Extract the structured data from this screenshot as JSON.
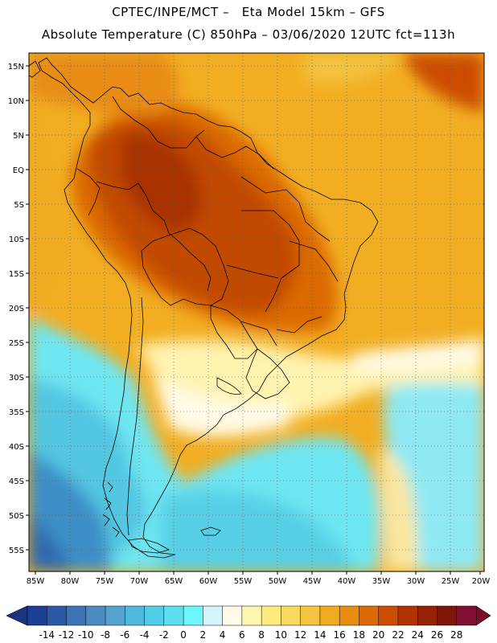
{
  "header": {
    "title_line1": "CPTEC/INPE/MCT –   Eta Model 15km – GFS",
    "title_line2": "Absolute Temperature (C) 850hPa – 03/06/2020 12UTC fct=113h"
  },
  "map": {
    "lon_labels": [
      "85W",
      "80W",
      "75W",
      "70W",
      "65W",
      "60W",
      "55W",
      "50W",
      "45W",
      "40W",
      "35W",
      "30W",
      "25W",
      "20W"
    ],
    "lat_labels": [
      "15N",
      "10N",
      "5N",
      "EQ",
      "5S",
      "10S",
      "15S",
      "20S",
      "25S",
      "30S",
      "35S",
      "40S",
      "45S",
      "50S",
      "55S"
    ]
  },
  "colorbar": {
    "labels": [
      "-14",
      "-12",
      "-10",
      "-8",
      "-6",
      "-4",
      "-2",
      "0",
      "2",
      "4",
      "6",
      "8",
      "10",
      "12",
      "14",
      "16",
      "18",
      "20",
      "22",
      "24",
      "26",
      "28"
    ],
    "colors": [
      "#1a3f93",
      "#2b5aa5",
      "#3c75b6",
      "#4a8bc2",
      "#56a2cf",
      "#4fb8dc",
      "#52cde6",
      "#5ddff0",
      "#6cf5fa",
      "#d2f5fb",
      "#fffbe6",
      "#fff6b0",
      "#fdeb80",
      "#f8d85e",
      "#f4c340",
      "#f0aa20",
      "#e88c12",
      "#dc6a06",
      "#cc4c04",
      "#b23404",
      "#962204",
      "#7c1606",
      "#801032"
    ],
    "low_arrow_color": "#1a3480",
    "high_arrow_color": "#7c0c2a"
  }
}
